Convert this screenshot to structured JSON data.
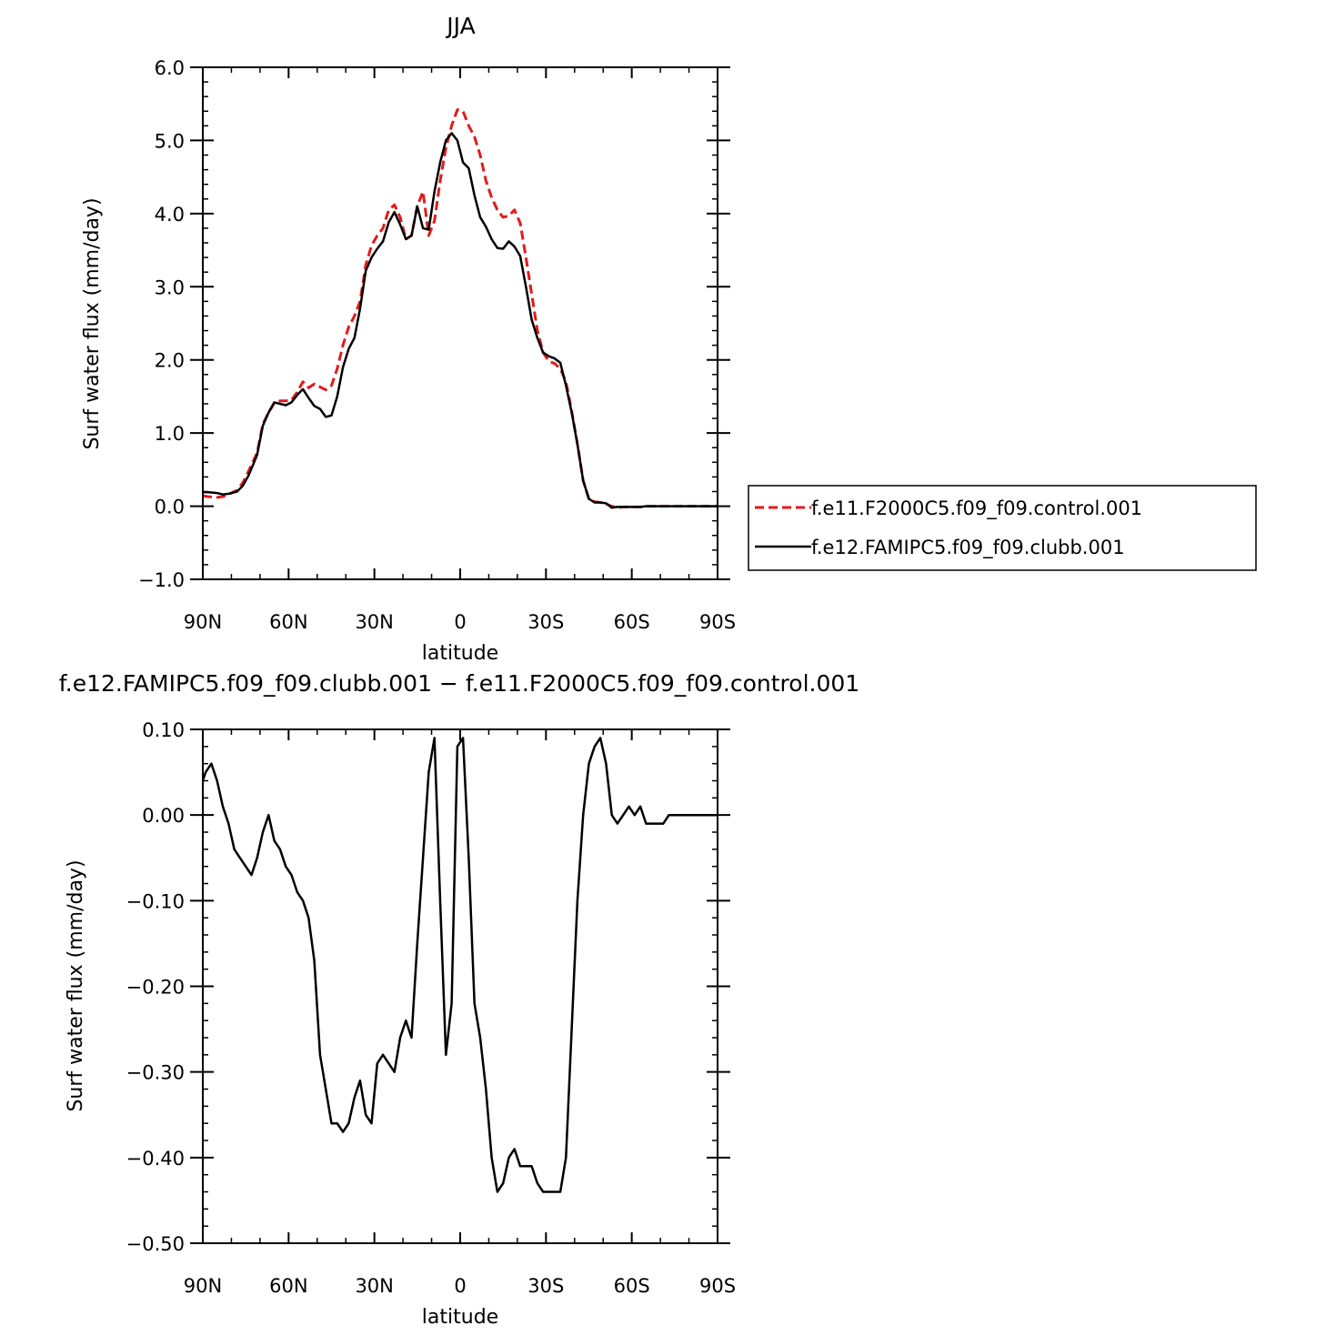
{
  "chart_data": [
    {
      "type": "line",
      "title": "JJA",
      "xlabel": "latitude",
      "ylabel": "Surf water flux (mm/day)",
      "xlim": [
        90,
        -90
      ],
      "ylim": [
        -1.0,
        6.0
      ],
      "x_ticks": [
        {
          "value": 90,
          "label": "90N"
        },
        {
          "value": 60,
          "label": "60N"
        },
        {
          "value": 30,
          "label": "30N"
        },
        {
          "value": 0,
          "label": "0"
        },
        {
          "value": -30,
          "label": "30S"
        },
        {
          "value": -60,
          "label": "60S"
        },
        {
          "value": -90,
          "label": "90S"
        }
      ],
      "y_ticks": [
        {
          "value": -1.0,
          "label": "−1.0"
        },
        {
          "value": 0.0,
          "label": "0.0"
        },
        {
          "value": 1.0,
          "label": "1.0"
        },
        {
          "value": 2.0,
          "label": "2.0"
        },
        {
          "value": 3.0,
          "label": "3.0"
        },
        {
          "value": 4.0,
          "label": "4.0"
        },
        {
          "value": 5.0,
          "label": "5.0"
        },
        {
          "value": 6.0,
          "label": "6.0"
        }
      ],
      "legend_position": "right",
      "series": [
        {
          "name": "f.e11.F2000C5.f09_f09.control.001",
          "color": "#e31a1c",
          "dash": "dashed",
          "x": [
            90,
            88,
            85,
            83,
            81,
            78,
            76,
            74,
            71,
            69,
            67,
            65,
            63,
            61,
            59,
            57,
            55,
            53,
            51,
            49,
            47,
            45,
            43,
            41,
            39,
            37,
            35,
            33,
            31,
            29,
            27,
            25,
            23,
            21,
            19,
            17,
            15,
            13,
            11,
            9,
            7,
            5,
            3,
            1,
            -1,
            -3,
            -5,
            -7,
            -9,
            -11,
            -13,
            -15,
            -17,
            -19,
            -21,
            -23,
            -25,
            -27,
            -29,
            -31,
            -33,
            -35,
            -37,
            -39,
            -41,
            -43,
            -45,
            -47,
            -49,
            -51,
            -53,
            -55,
            -57,
            -59,
            -61,
            -63,
            -65,
            -67,
            -69,
            -71,
            -73,
            -75,
            -77,
            -79,
            -81,
            -83,
            -85,
            -87,
            -90
          ],
          "y": [
            0.14,
            0.13,
            0.12,
            0.13,
            0.16,
            0.22,
            0.32,
            0.48,
            0.73,
            1.12,
            1.28,
            1.41,
            1.44,
            1.44,
            1.45,
            1.56,
            1.7,
            1.62,
            1.67,
            1.63,
            1.59,
            1.65,
            1.88,
            2.2,
            2.45,
            2.6,
            2.8,
            3.3,
            3.56,
            3.7,
            3.8,
            4.05,
            4.12,
            3.95,
            3.65,
            3.7,
            4.1,
            4.3,
            3.7,
            3.9,
            4.45,
            4.9,
            5.2,
            5.42,
            5.4,
            5.2,
            5.05,
            4.8,
            4.45,
            4.22,
            4.05,
            3.95,
            3.97,
            4.05,
            3.87,
            3.4,
            2.9,
            2.4,
            2.1,
            1.98,
            1.95,
            1.88,
            1.7,
            1.3,
            0.85,
            0.35,
            0.1,
            0.06,
            0.05,
            0.03,
            0.0,
            -0.02,
            -0.01,
            -0.01,
            -0.01,
            -0.01,
            0.0,
            0.0,
            0.0,
            0.0,
            0.0,
            0.0,
            0.0,
            0.0,
            0.0,
            0.0,
            0.0,
            0.0,
            0.0
          ]
        },
        {
          "name": "f.e12.FAMIPC5.f09_f09.clubb.001",
          "color": "#000000",
          "dash": "solid",
          "x": [
            90,
            88,
            85,
            83,
            81,
            78,
            76,
            74,
            71,
            69,
            67,
            65,
            63,
            61,
            59,
            57,
            55,
            53,
            51,
            49,
            47,
            45,
            43,
            41,
            39,
            37,
            35,
            33,
            31,
            29,
            27,
            25,
            23,
            21,
            19,
            17,
            15,
            13,
            11,
            9,
            7,
            5,
            3,
            1,
            -1,
            -3,
            -5,
            -7,
            -9,
            -11,
            -13,
            -15,
            -17,
            -19,
            -21,
            -23,
            -25,
            -27,
            -29,
            -31,
            -33,
            -35,
            -37,
            -39,
            -41,
            -43,
            -45,
            -47,
            -49,
            -51,
            -53,
            -55,
            -57,
            -59,
            -61,
            -63,
            -65,
            -67,
            -69,
            -71,
            -73,
            -75,
            -77,
            -79,
            -81,
            -83,
            -85,
            -87,
            -90
          ],
          "y": [
            0.19,
            0.19,
            0.18,
            0.16,
            0.17,
            0.2,
            0.28,
            0.42,
            0.7,
            1.1,
            1.28,
            1.42,
            1.4,
            1.38,
            1.42,
            1.52,
            1.6,
            1.48,
            1.37,
            1.33,
            1.22,
            1.24,
            1.5,
            1.9,
            2.15,
            2.3,
            2.7,
            3.22,
            3.4,
            3.52,
            3.62,
            3.88,
            4.02,
            3.85,
            3.65,
            3.7,
            4.1,
            3.8,
            3.78,
            4.3,
            4.7,
            5.0,
            5.1,
            5.0,
            4.7,
            4.62,
            4.25,
            3.95,
            3.82,
            3.65,
            3.53,
            3.52,
            3.62,
            3.55,
            3.42,
            3.0,
            2.55,
            2.3,
            2.1,
            2.05,
            2.02,
            1.96,
            1.65,
            1.28,
            0.85,
            0.35,
            0.1,
            0.05,
            0.05,
            0.04,
            -0.02,
            -0.01,
            -0.01,
            -0.01,
            -0.01,
            -0.01,
            0.0,
            0.0,
            0.0,
            0.0,
            0.0,
            0.0,
            0.0,
            0.0,
            0.0,
            0.0,
            0.0,
            0.0,
            0.0
          ]
        }
      ]
    },
    {
      "type": "line",
      "title": "f.e12.FAMIPC5.f09_f09.clubb.001 − f.e11.F2000C5.f09_f09.control.001",
      "xlabel": "latitude",
      "ylabel": "Surf water flux (mm/day)",
      "xlim": [
        90,
        -90
      ],
      "ylim": [
        -0.5,
        0.1
      ],
      "x_ticks": [
        {
          "value": 90,
          "label": "90N"
        },
        {
          "value": 60,
          "label": "60N"
        },
        {
          "value": 30,
          "label": "30N"
        },
        {
          "value": 0,
          "label": "0"
        },
        {
          "value": -30,
          "label": "30S"
        },
        {
          "value": -60,
          "label": "60S"
        },
        {
          "value": -90,
          "label": "90S"
        }
      ],
      "y_ticks": [
        {
          "value": -0.5,
          "label": "−0.50"
        },
        {
          "value": -0.4,
          "label": "−0.40"
        },
        {
          "value": -0.3,
          "label": "−0.30"
        },
        {
          "value": -0.2,
          "label": "−0.20"
        },
        {
          "value": -0.1,
          "label": "−0.10"
        },
        {
          "value": 0.0,
          "label": "0.00"
        },
        {
          "value": 0.1,
          "label": "0.10"
        }
      ],
      "series": [
        {
          "color": "#000000",
          "dash": "solid",
          "x": [
            90,
            89,
            87,
            85,
            83,
            81,
            79,
            77,
            75,
            73,
            71,
            69,
            67,
            65,
            63,
            61,
            59,
            57,
            55,
            53,
            51,
            49,
            47,
            45,
            43,
            41,
            39,
            37,
            35,
            33,
            31,
            29,
            27,
            25,
            23,
            21,
            19,
            17,
            15,
            13,
            11,
            9,
            7,
            5,
            3,
            1,
            -1,
            -3,
            -5,
            -7,
            -9,
            -11,
            -13,
            -15,
            -17,
            -19,
            -21,
            -23,
            -25,
            -27,
            -29,
            -31,
            -33,
            -35,
            -37,
            -39,
            -41,
            -43,
            -45,
            -47,
            -49,
            -51,
            -53,
            -55,
            -57,
            -59,
            -61,
            -63,
            -65,
            -67,
            -69,
            -71,
            -73,
            -75,
            -77,
            -79,
            -81,
            -83,
            -85,
            -87,
            -90
          ],
          "y": [
            0.04,
            0.05,
            0.06,
            0.04,
            0.01,
            -0.01,
            -0.04,
            -0.05,
            -0.06,
            -0.07,
            -0.05,
            -0.02,
            0.0,
            -0.03,
            -0.04,
            -0.06,
            -0.07,
            -0.09,
            -0.1,
            -0.12,
            -0.17,
            -0.28,
            -0.32,
            -0.36,
            -0.36,
            -0.37,
            -0.36,
            -0.33,
            -0.31,
            -0.35,
            -0.36,
            -0.29,
            -0.28,
            -0.29,
            -0.3,
            -0.26,
            -0.24,
            -0.26,
            -0.15,
            -0.05,
            0.05,
            0.09,
            -0.1,
            -0.28,
            -0.22,
            0.08,
            0.09,
            -0.05,
            -0.22,
            -0.26,
            -0.32,
            -0.4,
            -0.44,
            -0.43,
            -0.4,
            -0.39,
            -0.41,
            -0.41,
            -0.41,
            -0.43,
            -0.44,
            -0.44,
            -0.44,
            -0.44,
            -0.4,
            -0.25,
            -0.1,
            0.0,
            0.06,
            0.08,
            0.09,
            0.06,
            0.0,
            -0.01,
            0.0,
            0.01,
            0.0,
            0.01,
            -0.01,
            -0.01,
            -0.01,
            -0.01,
            0.0,
            0.0,
            0.0,
            0.0,
            0.0,
            0.0,
            0.0,
            0.0,
            0.0
          ]
        }
      ]
    }
  ]
}
